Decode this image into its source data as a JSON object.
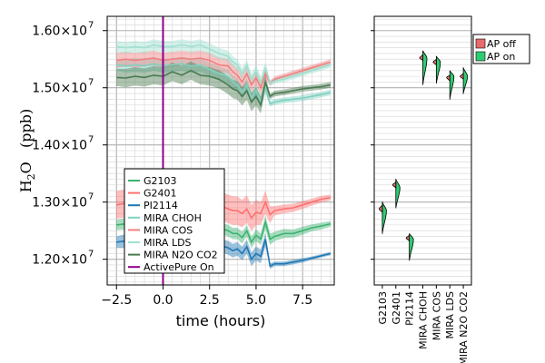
{
  "chart_data": [
    {
      "type": "line",
      "xlabel": "time (hours)",
      "ylabel_main": "H",
      "ylabel_sub": "2",
      "ylabel_rest": "O   (ppb)",
      "xlim": [
        -3,
        9.2
      ],
      "ylim": [
        11550000.0,
        16250000.0
      ],
      "x_ticks": [
        -2.5,
        0,
        2.5,
        5,
        7.5
      ],
      "x_tick_labels": [
        "−2.5",
        "0.0",
        "2.5",
        "5.0",
        "7.5"
      ],
      "y_ticks": [
        12000000,
        13000000,
        14000000,
        15000000,
        16000000
      ],
      "y_tick_labels": [
        "1.20×10",
        "1.30×10",
        "1.40×10",
        "1.50×10",
        "1.60×10"
      ],
      "y_tick_exponent": "7",
      "grid": true,
      "legend_position": "bottom-left",
      "vline": {
        "x": 0,
        "color": "#8b008b",
        "name": "ActivePure On"
      },
      "x": [
        -2.5,
        -2.0,
        -1.5,
        -1.0,
        -0.5,
        0.0,
        0.5,
        1.0,
        1.5,
        2.0,
        2.5,
        3.0,
        3.5,
        3.75,
        4.0,
        4.25,
        4.5,
        4.75,
        5.0,
        5.25,
        5.5,
        5.75,
        6.0,
        6.5,
        7.0,
        7.5,
        8.0,
        8.5,
        9.0
      ],
      "series": [
        {
          "name": "G2103",
          "color": "#3cb371",
          "band_color": "#3cb371",
          "values": [
            12.6,
            12.62,
            12.58,
            12.6,
            12.62,
            12.6,
            12.62,
            12.65,
            12.62,
            12.65,
            12.62,
            12.55,
            12.5,
            12.45,
            12.45,
            12.38,
            12.5,
            12.3,
            12.42,
            12.35,
            12.65,
            12.35,
            12.4,
            12.45,
            12.45,
            12.5,
            12.55,
            12.58,
            12.62
          ],
          "spread": [
            0.09,
            0.1,
            0.1,
            0.1,
            0.1,
            0.1,
            0.1,
            0.1,
            0.1,
            0.1,
            0.1,
            0.1,
            0.1,
            0.1,
            0.1,
            0.1,
            0.1,
            0.1,
            0.1,
            0.1,
            0.12,
            0.1,
            0.08,
            0.08,
            0.07,
            0.07,
            0.06,
            0.06,
            0.05
          ]
        },
        {
          "name": "G2401",
          "color": "#ff7070",
          "band_color": "#ff7070",
          "values": [
            12.95,
            12.98,
            12.95,
            12.97,
            13.0,
            12.98,
            13.0,
            13.02,
            13.0,
            13.05,
            13.0,
            12.95,
            12.88,
            12.85,
            12.85,
            12.8,
            12.88,
            12.72,
            12.82,
            12.8,
            13.0,
            12.78,
            12.85,
            12.88,
            12.9,
            12.95,
            13.0,
            13.05,
            13.08
          ],
          "spread": [
            0.24,
            0.25,
            0.25,
            0.25,
            0.25,
            0.25,
            0.25,
            0.25,
            0.25,
            0.25,
            0.25,
            0.25,
            0.25,
            0.25,
            0.25,
            0.24,
            0.24,
            0.23,
            0.22,
            0.2,
            0.2,
            0.15,
            0.08,
            0.08,
            0.07,
            0.07,
            0.06,
            0.06,
            0.05
          ]
        },
        {
          "name": "PI2114",
          "color": "#1f77b4",
          "band_color": "#1f77b4",
          "values": [
            12.3,
            12.32,
            12.3,
            12.32,
            12.33,
            12.3,
            12.32,
            12.35,
            12.3,
            12.35,
            12.32,
            12.25,
            12.2,
            12.15,
            12.18,
            12.1,
            12.22,
            12.0,
            12.1,
            12.05,
            12.35,
            11.88,
            11.92,
            11.92,
            11.95,
            11.98,
            12.02,
            12.06,
            12.1
          ],
          "spread": [
            0.1,
            0.12,
            0.12,
            0.12,
            0.12,
            0.12,
            0.12,
            0.12,
            0.12,
            0.12,
            0.12,
            0.12,
            0.12,
            0.12,
            0.12,
            0.12,
            0.12,
            0.12,
            0.12,
            0.12,
            0.12,
            0.05,
            0.04,
            0.04,
            0.04,
            0.04,
            0.03,
            0.03,
            0.03
          ]
        },
        {
          "name": "MIRA CHOH",
          "color": "#7fd1c1",
          "band_color": "#7fd1c1",
          "values": [
            15.4,
            15.38,
            15.4,
            15.38,
            15.42,
            15.38,
            15.4,
            15.42,
            15.38,
            15.4,
            15.32,
            15.25,
            15.2,
            15.1,
            15.05,
            14.92,
            15.05,
            14.82,
            14.95,
            14.75,
            15.0,
            14.72,
            14.75,
            14.78,
            14.8,
            14.82,
            14.85,
            14.88,
            14.92
          ],
          "spread": [
            0.1,
            0.12,
            0.12,
            0.12,
            0.12,
            0.12,
            0.12,
            0.12,
            0.12,
            0.12,
            0.12,
            0.12,
            0.12,
            0.12,
            0.12,
            0.12,
            0.12,
            0.12,
            0.12,
            0.12,
            0.1,
            0.05,
            0.05,
            0.05,
            0.05,
            0.05,
            0.05,
            0.05,
            0.05
          ]
        },
        {
          "name": "MIRA COS",
          "color": "#f08080",
          "band_color": "#f08080",
          "values": [
            15.48,
            15.5,
            15.48,
            15.5,
            15.52,
            15.48,
            15.5,
            15.52,
            15.5,
            15.52,
            15.48,
            15.4,
            15.38,
            15.28,
            15.22,
            15.1,
            15.25,
            15.05,
            15.18,
            15.0,
            15.25,
            15.08,
            15.15,
            15.2,
            15.25,
            15.3,
            15.35,
            15.4,
            15.45
          ],
          "spread": [
            0.13,
            0.13,
            0.13,
            0.13,
            0.13,
            0.13,
            0.13,
            0.13,
            0.13,
            0.13,
            0.13,
            0.13,
            0.13,
            0.13,
            0.13,
            0.13,
            0.13,
            0.13,
            0.13,
            0.12,
            0.1,
            0.05,
            0.05,
            0.05,
            0.05,
            0.05,
            0.05,
            0.05,
            0.05
          ]
        },
        {
          "name": "MIRA LDS",
          "color": "#a0e0d0",
          "band_color": "#a0e0d0",
          "values": [
            15.72,
            15.7,
            15.72,
            15.7,
            15.75,
            15.72,
            15.72,
            15.75,
            15.72,
            15.75,
            15.68,
            15.6,
            15.55,
            15.45,
            15.4,
            15.25,
            15.4,
            15.15,
            15.3,
            15.1,
            15.35,
            15.08,
            15.12,
            15.15,
            15.2,
            15.25,
            15.3,
            15.35,
            15.4
          ],
          "spread": [
            0.1,
            0.1,
            0.1,
            0.1,
            0.1,
            0.1,
            0.1,
            0.1,
            0.1,
            0.1,
            0.1,
            0.1,
            0.1,
            0.1,
            0.1,
            0.1,
            0.1,
            0.1,
            0.1,
            0.1,
            0.1,
            0.05,
            0.05,
            0.05,
            0.05,
            0.05,
            0.05,
            0.05,
            0.05
          ]
        },
        {
          "name": "MIRA N2O CO2",
          "color": "#4a7a50",
          "band_color": "#4a7a50",
          "values": [
            15.18,
            15.17,
            15.2,
            15.18,
            15.22,
            15.2,
            15.28,
            15.22,
            15.3,
            15.22,
            15.2,
            15.15,
            15.05,
            14.98,
            14.95,
            14.85,
            14.95,
            14.75,
            14.85,
            14.7,
            15.1,
            14.85,
            14.9,
            14.92,
            14.95,
            14.98,
            15.0,
            15.02,
            15.05
          ],
          "spread": [
            0.15,
            0.16,
            0.16,
            0.16,
            0.16,
            0.16,
            0.16,
            0.16,
            0.16,
            0.16,
            0.16,
            0.16,
            0.16,
            0.16,
            0.16,
            0.16,
            0.16,
            0.16,
            0.16,
            0.15,
            0.12,
            0.05,
            0.05,
            0.05,
            0.05,
            0.05,
            0.05,
            0.05,
            0.05
          ]
        }
      ]
    },
    {
      "type": "violin",
      "categories": [
        "G2103",
        "G2401",
        "PI2114",
        "MIRA CHOH",
        "MIRA COS",
        "MIRA LDS",
        "MIRA N2O CO2"
      ],
      "ylim": [
        11550000.0,
        16250000.0
      ],
      "legend_position": "top-right",
      "legend": [
        {
          "name": "AP off",
          "color": "#e86a6a"
        },
        {
          "name": "AP on",
          "color": "#2ecc71"
        }
      ],
      "ap_off": [
        {
          "center": 12.88,
          "low": 12.82,
          "high": 12.95,
          "width": 0.25
        },
        {
          "center": 13.3,
          "low": 13.25,
          "high": 13.35,
          "width": 0.25
        },
        {
          "center": 12.37,
          "low": 12.32,
          "high": 12.42,
          "width": 0.25
        },
        {
          "center": 15.52,
          "low": 15.48,
          "high": 15.58,
          "width": 0.25
        },
        {
          "center": 15.45,
          "low": 15.4,
          "high": 15.5,
          "width": 0.25
        },
        {
          "center": 15.18,
          "low": 15.12,
          "high": 15.22,
          "width": 0.25
        },
        {
          "center": 15.2,
          "low": 15.15,
          "high": 15.25,
          "width": 0.25
        }
      ],
      "ap_on": [
        {
          "center": 12.85,
          "low": 12.45,
          "high": 13.0,
          "width": 0.55
        },
        {
          "center": 13.25,
          "low": 12.9,
          "high": 13.4,
          "width": 0.55
        },
        {
          "center": 12.35,
          "low": 11.98,
          "high": 12.45,
          "width": 0.55
        },
        {
          "center": 15.52,
          "low": 15.05,
          "high": 15.65,
          "width": 0.55
        },
        {
          "center": 15.45,
          "low": 15.08,
          "high": 15.55,
          "width": 0.55
        },
        {
          "center": 15.2,
          "low": 14.8,
          "high": 15.3,
          "width": 0.55
        },
        {
          "center": 15.2,
          "low": 14.9,
          "high": 15.35,
          "width": 0.55
        }
      ]
    }
  ]
}
